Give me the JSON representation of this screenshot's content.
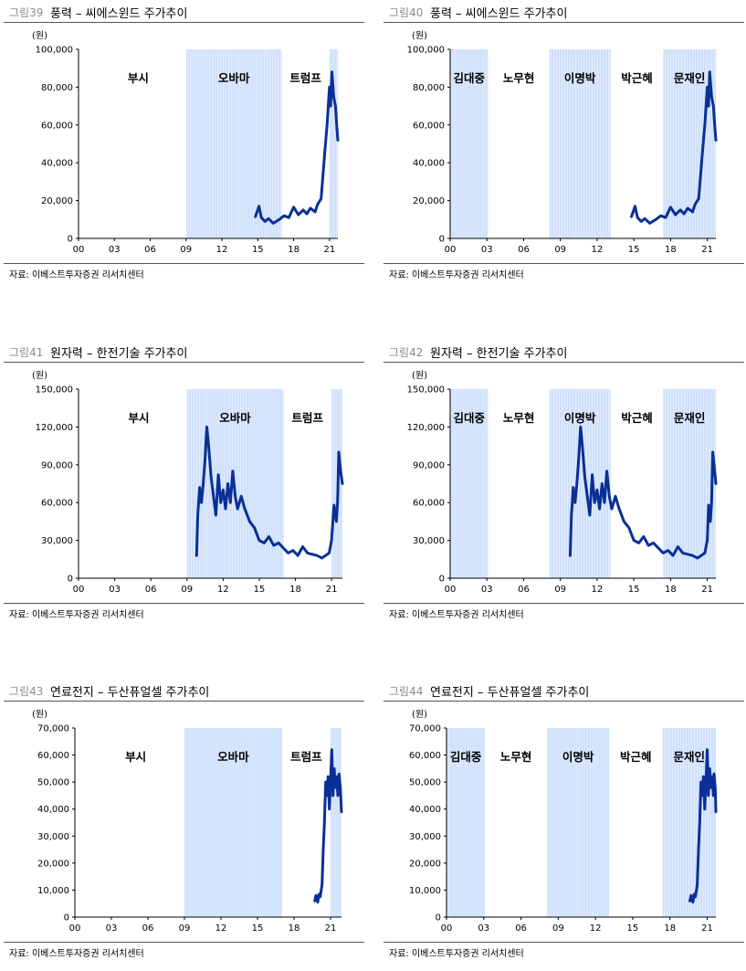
{
  "source_text": "자료: 이베스트투자증권 리서치센터",
  "unit_label": "(원)",
  "colors": {
    "line": "#0a2f96",
    "shade": "#cfe0fb",
    "axis": "#000000"
  },
  "panels": [
    {
      "fig_no": "그림39",
      "title": "풍력 – 씨에스윈드 주가추이",
      "eras": [
        {
          "label": "부시",
          "start": 2001.0,
          "end": 2009.0,
          "shaded": false
        },
        {
          "label": "오바마",
          "start": 2009.0,
          "end": 2017.0,
          "shaded": true
        },
        {
          "label": "트럼프",
          "start": 2017.0,
          "end": 2021.0,
          "shaded": false
        },
        {
          "label": "",
          "start": 2021.0,
          "end": 2021.7,
          "shaded": true
        }
      ],
      "chart_data": {
        "type": "line",
        "title": "풍력 – 씨에스윈드 주가추이",
        "xlim": [
          2000,
          2021.7
        ],
        "ylim": [
          0,
          100000
        ],
        "ylabel": "(원)",
        "xticks": [
          "00",
          "03",
          "06",
          "09",
          "12",
          "15",
          "18",
          "21"
        ],
        "yticks": [
          "0",
          "20,000",
          "40,000",
          "60,000",
          "80,000",
          "100,000"
        ],
        "series": [
          {
            "x": [
              2014.8,
              2015.1,
              2015.3,
              2015.6,
              2015.9,
              2016.3,
              2016.8,
              2017.2,
              2017.6,
              2018.0,
              2018.4,
              2018.8,
              2019.1,
              2019.4,
              2019.8,
              2020.0,
              2020.3,
              2020.6,
              2020.8,
              2021.0,
              2021.1,
              2021.2,
              2021.35,
              2021.5,
              2021.6,
              2021.7
            ],
            "y": [
              11500,
              17000,
              11000,
              9000,
              10500,
              8000,
              10000,
              12000,
              11000,
              16500,
              12500,
              15000,
              13000,
              16000,
              14000,
              18000,
              21000,
              45000,
              60000,
              80000,
              70000,
              88000,
              75000,
              70000,
              60000,
              52000
            ]
          }
        ]
      }
    },
    {
      "fig_no": "그림40",
      "title": "풍력 – 씨에스윈드 주가추이",
      "eras": [
        {
          "label": "김대중",
          "start": 2000.0,
          "end": 2003.1,
          "shaded": true
        },
        {
          "label": "노무현",
          "start": 2003.1,
          "end": 2008.1,
          "shaded": false
        },
        {
          "label": "이명박",
          "start": 2008.1,
          "end": 2013.1,
          "shaded": true
        },
        {
          "label": "박근혜",
          "start": 2013.1,
          "end": 2017.4,
          "shaded": false
        },
        {
          "label": "문재인",
          "start": 2017.4,
          "end": 2021.7,
          "shaded": true
        }
      ],
      "chart_data": {
        "type": "line",
        "title": "풍력 – 씨에스윈드 주가추이",
        "xlim": [
          2000,
          2021.7
        ],
        "ylim": [
          0,
          100000
        ],
        "ylabel": "(원)",
        "xticks": [
          "00",
          "03",
          "06",
          "09",
          "12",
          "15",
          "18",
          "21"
        ],
        "yticks": [
          "0",
          "20,000",
          "40,000",
          "60,000",
          "80,000",
          "100,000"
        ],
        "series": [
          {
            "x": [
              2014.8,
              2015.1,
              2015.3,
              2015.6,
              2015.9,
              2016.3,
              2016.8,
              2017.2,
              2017.6,
              2018.0,
              2018.4,
              2018.8,
              2019.1,
              2019.4,
              2019.8,
              2020.0,
              2020.3,
              2020.6,
              2020.8,
              2021.0,
              2021.1,
              2021.2,
              2021.35,
              2021.5,
              2021.6,
              2021.7
            ],
            "y": [
              11500,
              17000,
              11000,
              9000,
              10500,
              8000,
              10000,
              12000,
              11000,
              16500,
              12500,
              15000,
              13000,
              16000,
              14000,
              18000,
              21000,
              45000,
              60000,
              80000,
              70000,
              88000,
              75000,
              70000,
              60000,
              52000
            ]
          }
        ]
      }
    },
    {
      "fig_no": "그림41",
      "title": "원자력 – 한전기술 주가추이",
      "eras": [
        {
          "label": "부시",
          "start": 2001.0,
          "end": 2009.0,
          "shaded": false
        },
        {
          "label": "오바마",
          "start": 2009.0,
          "end": 2017.0,
          "shaded": true
        },
        {
          "label": "트럼프",
          "start": 2017.0,
          "end": 2021.0,
          "shaded": false
        },
        {
          "label": "",
          "start": 2021.0,
          "end": 2021.9,
          "shaded": true
        }
      ],
      "chart_data": {
        "type": "line",
        "title": "원자력 – 한전기술 주가추이",
        "xlim": [
          2000,
          2021.9
        ],
        "ylim": [
          0,
          150000
        ],
        "ylabel": "(원)",
        "xticks": [
          "00",
          "03",
          "06",
          "09",
          "12",
          "15",
          "18",
          "21"
        ],
        "yticks": [
          "0",
          "30,000",
          "60,000",
          "90,000",
          "120,000",
          "150,000"
        ],
        "series": [
          {
            "x": [
              2009.8,
              2009.9,
              2010.05,
              2010.2,
              2010.35,
              2010.5,
              2010.65,
              2010.8,
              2011.0,
              2011.2,
              2011.4,
              2011.6,
              2011.8,
              2012.0,
              2012.2,
              2012.4,
              2012.6,
              2012.8,
              2013.0,
              2013.2,
              2013.5,
              2013.8,
              2014.2,
              2014.6,
              2015.0,
              2015.4,
              2015.8,
              2016.2,
              2016.6,
              2017.0,
              2017.4,
              2017.8,
              2018.2,
              2018.6,
              2019.0,
              2019.4,
              2019.8,
              2020.2,
              2020.5,
              2020.8,
              2021.0,
              2021.2,
              2021.4,
              2021.5,
              2021.6,
              2021.75,
              2021.9
            ],
            "y": [
              18000,
              50000,
              72000,
              60000,
              75000,
              95000,
              120000,
              105000,
              80000,
              65000,
              50000,
              82000,
              60000,
              70000,
              55000,
              75000,
              60000,
              85000,
              65000,
              55000,
              65000,
              55000,
              45000,
              40000,
              30000,
              28000,
              33000,
              26000,
              28000,
              24000,
              20000,
              22000,
              18000,
              25000,
              20000,
              19000,
              18000,
              16000,
              18000,
              20000,
              30000,
              58000,
              45000,
              60000,
              100000,
              85000,
              75000
            ]
          }
        ]
      }
    },
    {
      "fig_no": "그림42",
      "title": "원자력 – 한전기술 주가추이",
      "eras": [
        {
          "label": "김대중",
          "start": 2000.0,
          "end": 2003.1,
          "shaded": true
        },
        {
          "label": "노무현",
          "start": 2003.1,
          "end": 2008.1,
          "shaded": false
        },
        {
          "label": "이명박",
          "start": 2008.1,
          "end": 2013.1,
          "shaded": true
        },
        {
          "label": "박근혜",
          "start": 2013.1,
          "end": 2017.4,
          "shaded": false
        },
        {
          "label": "문재인",
          "start": 2017.4,
          "end": 2021.7,
          "shaded": true
        }
      ],
      "chart_data": {
        "type": "line",
        "title": "원자력 – 한전기술 주가추이",
        "xlim": [
          2000,
          2021.7
        ],
        "ylim": [
          0,
          150000
        ],
        "ylabel": "(원)",
        "xticks": [
          "00",
          "03",
          "06",
          "09",
          "12",
          "15",
          "18",
          "21"
        ],
        "yticks": [
          "0",
          "30,000",
          "60,000",
          "90,000",
          "120,000",
          "150,000"
        ],
        "series": [
          {
            "x": [
              2009.8,
              2009.9,
              2010.05,
              2010.2,
              2010.35,
              2010.5,
              2010.65,
              2010.8,
              2011.0,
              2011.2,
              2011.4,
              2011.6,
              2011.8,
              2012.0,
              2012.2,
              2012.4,
              2012.6,
              2012.8,
              2013.0,
              2013.2,
              2013.5,
              2013.8,
              2014.2,
              2014.6,
              2015.0,
              2015.4,
              2015.8,
              2016.2,
              2016.6,
              2017.0,
              2017.4,
              2017.8,
              2018.2,
              2018.6,
              2019.0,
              2019.4,
              2019.8,
              2020.2,
              2020.5,
              2020.8,
              2021.0,
              2021.1,
              2021.25,
              2021.35,
              2021.45,
              2021.6,
              2021.7
            ],
            "y": [
              18000,
              50000,
              72000,
              60000,
              75000,
              95000,
              120000,
              105000,
              80000,
              65000,
              50000,
              82000,
              60000,
              70000,
              55000,
              75000,
              60000,
              85000,
              65000,
              55000,
              65000,
              55000,
              45000,
              40000,
              30000,
              28000,
              33000,
              26000,
              28000,
              24000,
              20000,
              22000,
              18000,
              25000,
              20000,
              19000,
              18000,
              16000,
              18000,
              20000,
              30000,
              58000,
              45000,
              60000,
              100000,
              85000,
              75000
            ]
          }
        ]
      }
    },
    {
      "fig_no": "그림43",
      "title": "연료전지 – 두산퓨얼셀 주가추이",
      "eras": [
        {
          "label": "부시",
          "start": 2001.0,
          "end": 2009.0,
          "shaded": false
        },
        {
          "label": "오바마",
          "start": 2009.0,
          "end": 2017.0,
          "shaded": true
        },
        {
          "label": "트럼프",
          "start": 2017.0,
          "end": 2021.0,
          "shaded": false
        },
        {
          "label": "",
          "start": 2021.0,
          "end": 2021.9,
          "shaded": true
        }
      ],
      "chart_data": {
        "type": "line",
        "title": "연료전지 – 두산퓨얼셀 주가추이",
        "xlim": [
          2000,
          2021.9
        ],
        "ylim": [
          0,
          70000
        ],
        "ylabel": "(원)",
        "xticks": [
          "00",
          "03",
          "06",
          "09",
          "12",
          "15",
          "18",
          "21"
        ],
        "yticks": [
          "0",
          "10,000",
          "20,000",
          "30,000",
          "40,000",
          "50,000",
          "60,000",
          "70,000"
        ],
        "series": [
          {
            "x": [
              2019.7,
              2019.8,
              2019.95,
              2020.05,
              2020.15,
              2020.3,
              2020.4,
              2020.5,
              2020.6,
              2020.7,
              2020.8,
              2020.9,
              2021.0,
              2021.1,
              2021.2,
              2021.3,
              2021.4,
              2021.5,
              2021.6,
              2021.7,
              2021.8,
              2021.9
            ],
            "y": [
              6000,
              8000,
              5500,
              8500,
              7500,
              12000,
              25000,
              35000,
              50000,
              45000,
              52000,
              40000,
              50000,
              62000,
              45000,
              55000,
              48000,
              52000,
              45000,
              53000,
              48000,
              39000
            ]
          }
        ]
      }
    },
    {
      "fig_no": "그림44",
      "title": "연료전지 – 두산퓨얼셀 주가추이",
      "eras": [
        {
          "label": "김대중",
          "start": 2000.0,
          "end": 2003.1,
          "shaded": true
        },
        {
          "label": "노무현",
          "start": 2003.1,
          "end": 2008.1,
          "shaded": false
        },
        {
          "label": "이명박",
          "start": 2008.1,
          "end": 2013.1,
          "shaded": true
        },
        {
          "label": "박근혜",
          "start": 2013.1,
          "end": 2017.4,
          "shaded": false
        },
        {
          "label": "문재인",
          "start": 2017.4,
          "end": 2021.7,
          "shaded": true
        }
      ],
      "chart_data": {
        "type": "line",
        "title": "연료전지 – 두산퓨얼셀 주가추이",
        "xlim": [
          2000,
          2021.7
        ],
        "ylim": [
          0,
          70000
        ],
        "ylabel": "(원)",
        "xticks": [
          "00",
          "03",
          "06",
          "09",
          "12",
          "15",
          "18",
          "21"
        ],
        "yticks": [
          "0",
          "10,000",
          "20,000",
          "30,000",
          "40,000",
          "50,000",
          "60,000",
          "70,000"
        ],
        "series": [
          {
            "x": [
              2019.6,
              2019.7,
              2019.85,
              2019.95,
              2020.05,
              2020.2,
              2020.3,
              2020.4,
              2020.5,
              2020.6,
              2020.7,
              2020.8,
              2020.9,
              2021.0,
              2021.1,
              2021.2,
              2021.3,
              2021.4,
              2021.5,
              2021.55,
              2021.65,
              2021.7
            ],
            "y": [
              6000,
              8000,
              5500,
              8500,
              7500,
              12000,
              25000,
              35000,
              50000,
              45000,
              52000,
              40000,
              50000,
              62000,
              45000,
              55000,
              48000,
              52000,
              45000,
              53000,
              48000,
              39000
            ]
          }
        ]
      }
    }
  ]
}
